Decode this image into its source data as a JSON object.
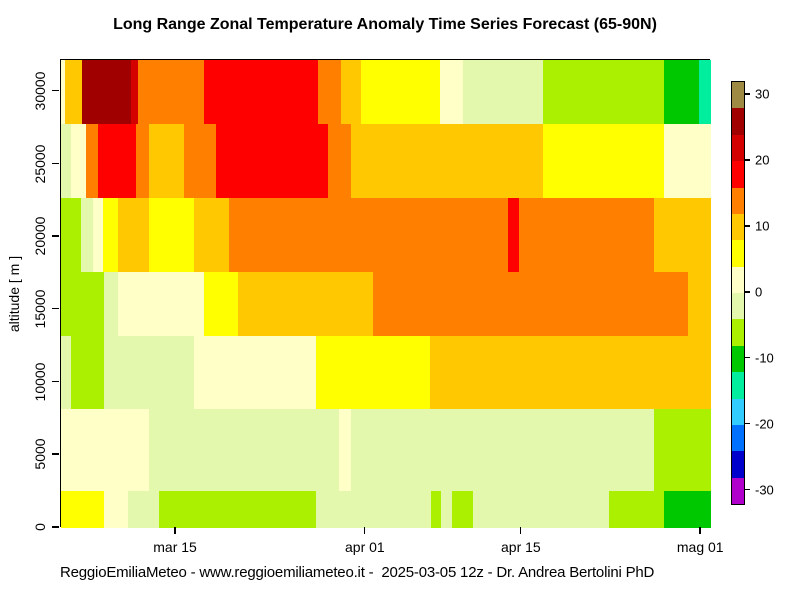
{
  "title": "Long Range Zonal Temperature Anomaly Time Series Forecast (65-90N)",
  "caption": "ReggioEmiliaMeteo - www.reggioemiliameteo.it -  2025-03-05 12z - Dr. Andrea Bertolini PhD",
  "chart_data": {
    "type": "heatmap",
    "title": "Long Range Zonal Temperature Anomaly Time Series Forecast (65-90N)",
    "xlabel": "",
    "ylabel": "altitude [ m ]",
    "value_units": "temperature anomaly",
    "x_ticks": [
      {
        "label": "mar 15",
        "f": 0.177
      },
      {
        "label": "apr 01",
        "f": 0.469
      },
      {
        "label": "apr 15",
        "f": 0.709
      },
      {
        "label": "mag 01",
        "f": 0.985
      }
    ],
    "y_ticks": [
      {
        "label": "0",
        "f": 1.0
      },
      {
        "label": "5000",
        "f": 0.845
      },
      {
        "label": "10000",
        "f": 0.69
      },
      {
        "label": "15000",
        "f": 0.534
      },
      {
        "label": "20000",
        "f": 0.379
      },
      {
        "label": "25000",
        "f": 0.224
      },
      {
        "label": "30000",
        "f": 0.068
      }
    ],
    "y_range_m": [
      0,
      32100
    ],
    "palette": [
      {
        "v": 30,
        "color": "#9F8A44"
      },
      {
        "v": 26,
        "color": "#A00000"
      },
      {
        "v": 22,
        "color": "#D40000"
      },
      {
        "v": 18,
        "color": "#FF0000"
      },
      {
        "v": 14,
        "color": "#FF8000"
      },
      {
        "v": 10,
        "color": "#FFC800"
      },
      {
        "v": 6,
        "color": "#FFFF00"
      },
      {
        "v": 2,
        "color": "#FFFFC8"
      },
      {
        "v": -2,
        "color": "#E3F7AD"
      },
      {
        "v": -6,
        "color": "#AAF000"
      },
      {
        "v": -10,
        "color": "#00C800"
      },
      {
        "v": -14,
        "color": "#00EE9E"
      },
      {
        "v": -18,
        "color": "#33CCFF"
      },
      {
        "v": -22,
        "color": "#0070FF"
      },
      {
        "v": -26,
        "color": "#0000CC"
      },
      {
        "v": -30,
        "color": "#B200CC"
      }
    ],
    "colorbar": {
      "range": [
        -32,
        32
      ],
      "ticks": [
        {
          "label": "30",
          "v": 30
        },
        {
          "label": "20",
          "v": 20
        },
        {
          "label": "10",
          "v": 10
        },
        {
          "label": "0",
          "v": 0
        },
        {
          "label": "-10",
          "v": -10
        },
        {
          "label": "-20",
          "v": -20
        },
        {
          "label": "-30",
          "v": -30
        }
      ]
    },
    "rows": [
      {
        "alt_top": 32100,
        "alt_bottom": 27900,
        "y0": 0.0,
        "y1": 0.137,
        "segments": [
          [
            0.0,
            0.006,
            2
          ],
          [
            0.006,
            0.032,
            10
          ],
          [
            0.032,
            0.108,
            26
          ],
          [
            0.108,
            0.118,
            22
          ],
          [
            0.118,
            0.22,
            14
          ],
          [
            0.22,
            0.395,
            18
          ],
          [
            0.395,
            0.431,
            14
          ],
          [
            0.431,
            0.462,
            10
          ],
          [
            0.462,
            0.583,
            6
          ],
          [
            0.583,
            0.618,
            2
          ],
          [
            0.618,
            0.742,
            -2
          ],
          [
            0.742,
            0.928,
            -6
          ],
          [
            0.928,
            0.982,
            -10
          ],
          [
            0.982,
            1.0,
            -14
          ]
        ]
      },
      {
        "alt_top": 27900,
        "alt_bottom": 22800,
        "y0": 0.137,
        "y1": 0.295,
        "segments": [
          [
            0.0,
            0.015,
            -2
          ],
          [
            0.015,
            0.038,
            2
          ],
          [
            0.038,
            0.057,
            14
          ],
          [
            0.057,
            0.115,
            18
          ],
          [
            0.115,
            0.135,
            14
          ],
          [
            0.135,
            0.189,
            10
          ],
          [
            0.189,
            0.238,
            14
          ],
          [
            0.238,
            0.411,
            18
          ],
          [
            0.411,
            0.446,
            14
          ],
          [
            0.446,
            0.742,
            10
          ],
          [
            0.742,
            0.928,
            6
          ],
          [
            0.928,
            1.0,
            2
          ]
        ]
      },
      {
        "alt_top": 22800,
        "alt_bottom": 17600,
        "y0": 0.295,
        "y1": 0.454,
        "segments": [
          [
            0.0,
            0.031,
            -6
          ],
          [
            0.031,
            0.049,
            -2
          ],
          [
            0.049,
            0.065,
            2
          ],
          [
            0.065,
            0.088,
            6
          ],
          [
            0.088,
            0.135,
            10
          ],
          [
            0.135,
            0.205,
            6
          ],
          [
            0.205,
            0.258,
            10
          ],
          [
            0.258,
            0.688,
            14
          ],
          [
            0.688,
            0.705,
            18
          ],
          [
            0.705,
            0.912,
            14
          ],
          [
            0.912,
            1.0,
            10
          ]
        ]
      },
      {
        "alt_top": 17600,
        "alt_bottom": 13200,
        "y0": 0.454,
        "y1": 0.59,
        "segments": [
          [
            0.0,
            0.066,
            -6
          ],
          [
            0.066,
            0.088,
            -2
          ],
          [
            0.088,
            0.22,
            2
          ],
          [
            0.22,
            0.272,
            6
          ],
          [
            0.272,
            0.48,
            10
          ],
          [
            0.48,
            0.965,
            14
          ],
          [
            0.965,
            1.0,
            10
          ]
        ]
      },
      {
        "alt_top": 13200,
        "alt_bottom": 8200,
        "y0": 0.59,
        "y1": 0.746,
        "segments": [
          [
            0.0,
            0.015,
            -2
          ],
          [
            0.015,
            0.066,
            -6
          ],
          [
            0.066,
            0.205,
            -2
          ],
          [
            0.205,
            0.392,
            2
          ],
          [
            0.392,
            0.568,
            6
          ],
          [
            0.568,
            1.0,
            10
          ]
        ]
      },
      {
        "alt_top": 8200,
        "alt_bottom": 2600,
        "y0": 0.746,
        "y1": 0.92,
        "segments": [
          [
            0.0,
            0.135,
            2
          ],
          [
            0.135,
            0.428,
            -2
          ],
          [
            0.428,
            0.446,
            2
          ],
          [
            0.446,
            0.912,
            -2
          ],
          [
            0.912,
            1.0,
            -6
          ]
        ]
      },
      {
        "alt_top": 2600,
        "alt_bottom": 0,
        "y0": 0.92,
        "y1": 1.0,
        "segments": [
          [
            0.0,
            0.066,
            6
          ],
          [
            0.066,
            0.103,
            2
          ],
          [
            0.103,
            0.151,
            -2
          ],
          [
            0.151,
            0.392,
            -6
          ],
          [
            0.392,
            0.569,
            -2
          ],
          [
            0.569,
            0.585,
            -6
          ],
          [
            0.585,
            0.602,
            -2
          ],
          [
            0.602,
            0.634,
            -6
          ],
          [
            0.634,
            0.843,
            -2
          ],
          [
            0.843,
            0.928,
            -6
          ],
          [
            0.928,
            1.0,
            -10
          ]
        ]
      }
    ]
  }
}
